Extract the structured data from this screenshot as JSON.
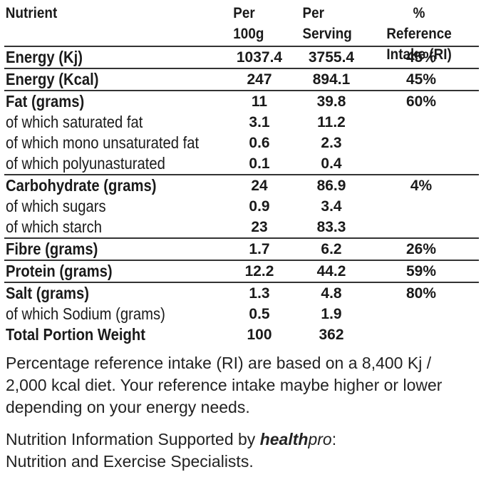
{
  "header": {
    "nutrient": "Nutrient",
    "per100g": "Per\n100g",
    "perServing": "Per\nServing",
    "ri": "% Reference\nIntake (RI)"
  },
  "rows": [
    {
      "label": "Energy (Kj)",
      "bold": true,
      "per100g": "1037.4",
      "perServing": "3755.4",
      "ri": "45%",
      "sep": true
    },
    {
      "label": "Energy (Kcal)",
      "bold": true,
      "per100g": "247",
      "perServing": "894.1",
      "ri": "45%",
      "sep": true
    },
    {
      "label": "Fat (grams)",
      "bold": true,
      "per100g": "11",
      "perServing": "39.8",
      "ri": "60%",
      "sep": true
    },
    {
      "label": "of which saturated fat",
      "bold": false,
      "per100g": "3.1",
      "perServing": "11.2",
      "ri": "",
      "sep": false
    },
    {
      "label": "of which mono unsaturated fat",
      "bold": false,
      "per100g": "0.6",
      "perServing": "2.3",
      "ri": "",
      "sep": false
    },
    {
      "label": "of which polyunasturated",
      "bold": false,
      "per100g": "0.1",
      "perServing": "0.4",
      "ri": "",
      "sep": false
    },
    {
      "label": "Carbohydrate (grams)",
      "bold": true,
      "per100g": "24",
      "perServing": "86.9",
      "ri": "4%",
      "sep": true
    },
    {
      "label": "of which sugars",
      "bold": false,
      "per100g": "0.9",
      "perServing": "3.4",
      "ri": "",
      "sep": false
    },
    {
      "label": "of which starch",
      "bold": false,
      "per100g": "23",
      "perServing": "83.3",
      "ri": "",
      "sep": false
    },
    {
      "label": "Fibre (grams)",
      "bold": true,
      "per100g": "1.7",
      "perServing": "6.2",
      "ri": "26%",
      "sep": true
    },
    {
      "label": "Protein (grams)",
      "bold": true,
      "per100g": "12.2",
      "perServing": "44.2",
      "ri": "59%",
      "sep": true
    },
    {
      "label": "Salt (grams)",
      "bold": true,
      "per100g": "1.3",
      "perServing": "4.8",
      "ri": "80%",
      "sep": true
    },
    {
      "label": "of which Sodium (grams)",
      "bold": false,
      "per100g": "0.5",
      "perServing": "1.9",
      "ri": "",
      "sep": false
    },
    {
      "label": "Total Portion Weight",
      "bold": true,
      "per100g": "100",
      "perServing": "362",
      "ri": "",
      "sep": false
    }
  ],
  "notes": {
    "ri_note": "Percentage reference intake (RI) are based on a 8,400 Kj / 2,000 kcal diet. Your reference intake maybe higher or lower depending on your energy needs.",
    "supported_prefix": "Nutrition Information Supported by ",
    "brand_bold": "health",
    "brand_light": "pro",
    "supported_suffix": ":",
    "supported_line2": "Nutrition and Exercise Specialists."
  }
}
